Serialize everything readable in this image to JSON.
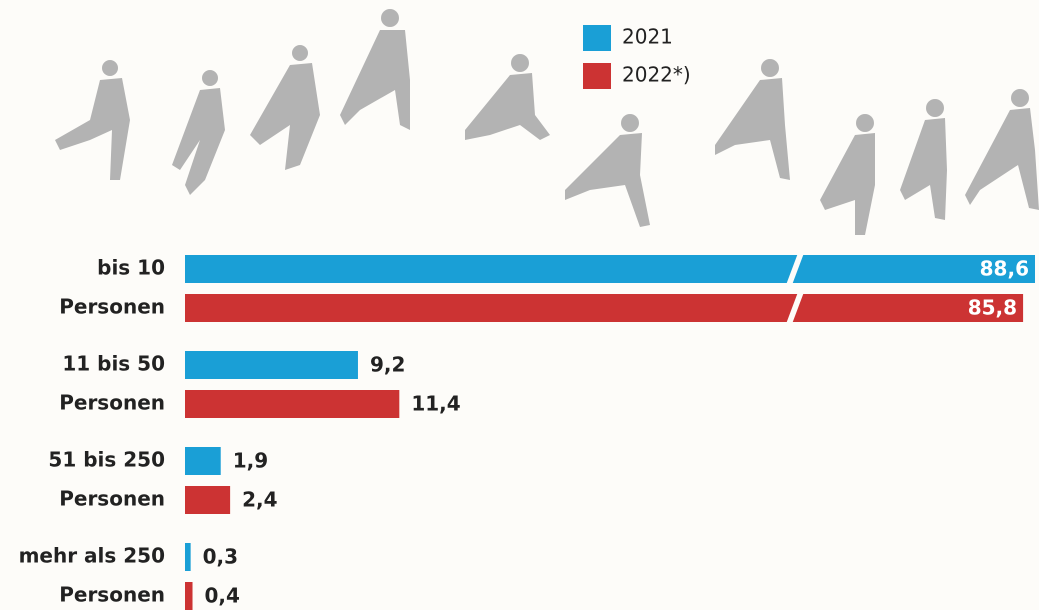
{
  "chart_data": {
    "type": "bar",
    "orientation": "horizontal",
    "categories": [
      [
        "bis 10",
        "Personen"
      ],
      [
        "11 bis 50",
        "Personen"
      ],
      [
        "51 bis 250",
        "Personen"
      ],
      [
        "mehr als 250",
        "Personen"
      ]
    ],
    "series": [
      {
        "name": "2021",
        "color": "#1a9fd6",
        "values": [
          88.6,
          9.2,
          1.9,
          0.3
        ],
        "value_labels": [
          "88,6",
          "9,2",
          "1,9",
          "0,3"
        ]
      },
      {
        "name": "2022*)",
        "color": "#cc3333",
        "values": [
          85.8,
          11.4,
          2.4,
          0.4
        ],
        "value_labels": [
          "85,8",
          "11,4",
          "2,4",
          "0,4"
        ]
      }
    ]
  }
}
